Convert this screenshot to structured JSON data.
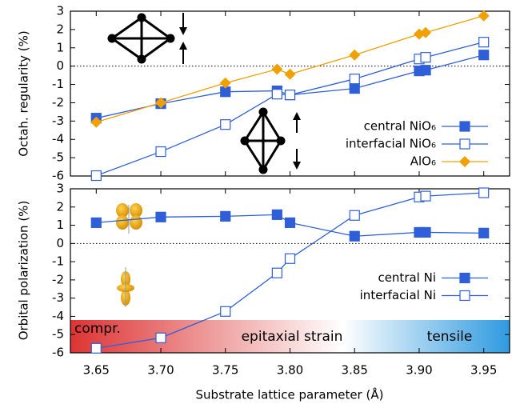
{
  "chart_data": [
    {
      "type": "line",
      "ylabel": "Octah. regularity (%)",
      "x": [
        3.65,
        3.7,
        3.75,
        3.79,
        3.8,
        3.85,
        3.9,
        3.905,
        3.95
      ],
      "xlim": [
        3.63,
        3.97
      ],
      "ylim": [
        -6,
        3
      ],
      "yticks": [
        -6,
        -5,
        -4,
        -3,
        -2,
        -1,
        0,
        1,
        2,
        3
      ],
      "legend": "lower right",
      "series": [
        {
          "name": "central NiO₆",
          "color": "#2f5fd8",
          "marker": "square",
          "values": [
            -2.84,
            -2.05,
            -1.4,
            -1.35,
            -1.57,
            -1.22,
            -0.26,
            -0.22,
            0.61
          ]
        },
        {
          "name": "interfacial NiO₆",
          "color": "#2f5fd8",
          "marker": "open-square",
          "values": [
            -5.98,
            -4.67,
            -3.19,
            -1.53,
            -1.57,
            -0.7,
            0.39,
            0.48,
            1.31
          ]
        },
        {
          "name": "AlO₆",
          "color": "#f0a000",
          "marker": "diamond",
          "values": [
            -3.06,
            -2.0,
            -0.92,
            -0.17,
            -0.44,
            0.61,
            1.75,
            1.83,
            2.75
          ]
        }
      ]
    },
    {
      "type": "line",
      "ylabel": "Orbital polarization (%)",
      "xlabel": "Substrate lattice parameter (Å)",
      "x": [
        3.65,
        3.7,
        3.75,
        3.79,
        3.8,
        3.85,
        3.9,
        3.905,
        3.95
      ],
      "xlim": [
        3.63,
        3.97
      ],
      "xticks": [
        3.65,
        {
          "value": 3.7,
          "label": "3.70"
        },
        3.75,
        {
          "value": 3.8,
          "label": "3.80"
        },
        3.85,
        {
          "value": 3.9,
          "label": "3.90"
        },
        3.95
      ],
      "ylim": [
        -6,
        3
      ],
      "yticks": [
        -6,
        -5,
        -4,
        -3,
        -2,
        -1,
        0,
        1,
        2,
        3
      ],
      "legend": "center right",
      "annotations": [
        "compr.",
        "epitaxial strain",
        "tensile"
      ],
      "series": [
        {
          "name": "central Ni",
          "color": "#2f5fd8",
          "marker": "square",
          "values": [
            1.14,
            1.45,
            1.49,
            1.58,
            1.14,
            0.4,
            0.61,
            0.61,
            0.57
          ]
        },
        {
          "name": "interfacial Ni",
          "color": "#2f5fd8",
          "marker": "open-square",
          "values": [
            -5.75,
            -5.18,
            -3.73,
            -1.62,
            -0.83,
            1.54,
            2.55,
            2.6,
            2.78
          ]
        }
      ]
    }
  ]
}
